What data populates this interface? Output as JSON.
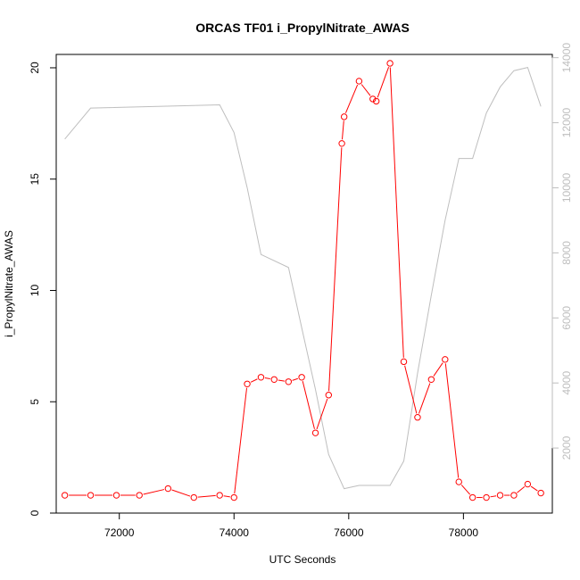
{
  "chart_data": {
    "type": "line",
    "title": "ORCAS TF01 i_PropylNitrate_AWAS",
    "xlabel": "UTC Seconds",
    "ylabel": "i_PropylNitrate_AWAS",
    "xlim": [
      70900,
      79550
    ],
    "ylim": [
      0,
      20.6
    ],
    "y2lim": [
      0,
      14100
    ],
    "x_ticks": [
      72000,
      74000,
      76000,
      78000
    ],
    "y_ticks": [
      0,
      5,
      10,
      15,
      20
    ],
    "y2_ticks": [
      2000,
      4000,
      6000,
      8000,
      10000,
      12000,
      14000
    ],
    "grid": false,
    "series": [
      {
        "axis": "left",
        "color": "#ff0000",
        "marker": "circle",
        "x": [
          71050,
          71500,
          71950,
          72350,
          72850,
          73300,
          73750,
          74000,
          74230,
          74470,
          74700,
          74950,
          75180,
          75420,
          75650,
          75880,
          75920,
          76180,
          76420,
          76480,
          76720,
          76960,
          77200,
          77440,
          77680,
          77920,
          78160,
          78400,
          78640,
          78880,
          79120,
          79350
        ],
        "values": [
          0.8,
          0.8,
          0.8,
          0.8,
          1.1,
          0.7,
          0.8,
          0.7,
          5.8,
          6.1,
          6.0,
          5.9,
          6.1,
          3.6,
          5.3,
          16.6,
          17.8,
          19.4,
          18.6,
          18.5,
          20.2,
          6.8,
          4.3,
          6.0,
          6.9,
          1.4,
          0.7,
          0.7,
          0.8,
          0.8,
          1.3,
          0.9
        ]
      },
      {
        "axis": "right",
        "color": "#bebebe",
        "marker": "none",
        "x": [
          71050,
          71500,
          73750,
          74000,
          74230,
          74470,
          74950,
          75180,
          75420,
          75650,
          75920,
          76180,
          76720,
          76960,
          77200,
          77440,
          77680,
          77920,
          78160,
          78400,
          78640,
          78880,
          79120,
          79350
        ],
        "values": [
          11500,
          12450,
          12550,
          11700,
          10000,
          7950,
          7550,
          5700,
          3800,
          1800,
          750,
          850,
          850,
          1600,
          4300,
          6700,
          9000,
          10900,
          10900,
          12300,
          13100,
          13600,
          13700,
          12500
        ]
      }
    ]
  }
}
